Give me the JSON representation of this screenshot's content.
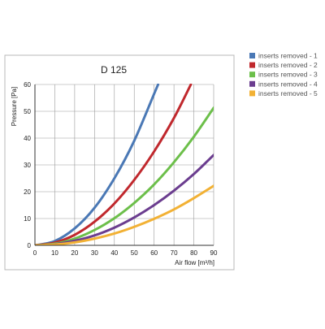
{
  "chart_data": {
    "type": "line",
    "title": "D 125",
    "xlabel": "Air flow  [m³/h]",
    "ylabel": "Pressure [Pa]",
    "xlim": [
      0,
      90
    ],
    "ylim": [
      0,
      60
    ],
    "x_ticks": [
      "0",
      "10",
      "20",
      "30",
      "40",
      "50",
      "60",
      "70",
      "80",
      "90"
    ],
    "y_ticks": [
      "0",
      "10",
      "20",
      "30",
      "40",
      "50",
      "60"
    ],
    "grid": true,
    "legend_position": "right",
    "series": [
      {
        "name": "inserts removed - 1",
        "color": "#4a78b5",
        "x": [
          0,
          10,
          20,
          30,
          40,
          50,
          60,
          62
        ],
        "y": [
          0,
          1.6,
          6.3,
          14,
          25,
          39,
          56.5,
          60
        ]
      },
      {
        "name": "inserts removed - 2",
        "color": "#c0282d",
        "x": [
          0,
          10,
          20,
          30,
          40,
          50,
          60,
          70,
          78.5
        ],
        "y": [
          0,
          1,
          3.9,
          8.8,
          15.6,
          24.4,
          35,
          47.5,
          60
        ]
      },
      {
        "name": "inserts removed - 3",
        "color": "#6cbf4a",
        "x": [
          0,
          10,
          20,
          30,
          40,
          50,
          60,
          70,
          80,
          90
        ],
        "y": [
          0,
          0.6,
          2.5,
          5.7,
          10.1,
          15.8,
          22.7,
          31,
          40.5,
          51.3
        ]
      },
      {
        "name": "inserts removed - 4",
        "color": "#6b3d8f",
        "x": [
          0,
          10,
          20,
          30,
          40,
          50,
          60,
          70,
          80,
          90
        ],
        "y": [
          0,
          0.4,
          1.7,
          3.7,
          6.6,
          10.4,
          15,
          20.4,
          26.6,
          33.7
        ]
      },
      {
        "name": "inserts removed - 5",
        "color": "#f2b134",
        "x": [
          0,
          10,
          20,
          30,
          40,
          50,
          60,
          70,
          80,
          90
        ],
        "y": [
          0,
          0.3,
          1.1,
          2.5,
          4.4,
          6.9,
          9.9,
          13.4,
          17.6,
          22.2
        ]
      }
    ]
  }
}
